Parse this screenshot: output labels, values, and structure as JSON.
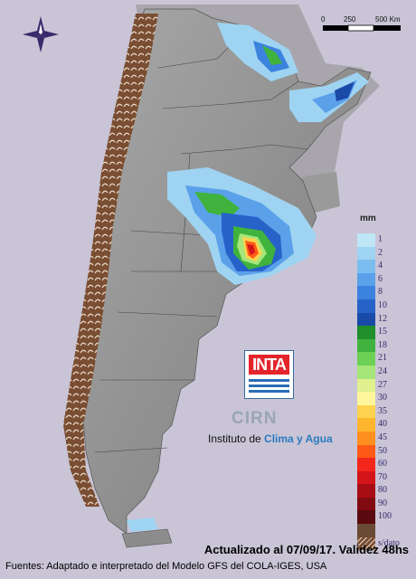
{
  "scale": {
    "label_0": "0",
    "label_mid": "250",
    "label_end": "500 Km"
  },
  "legend": {
    "unit": "mm",
    "items": [
      {
        "label": "1",
        "color": "#bfe6f5"
      },
      {
        "label": "2",
        "color": "#9fd3f2"
      },
      {
        "label": "4",
        "color": "#7cbdf0"
      },
      {
        "label": "6",
        "color": "#5aa1ea"
      },
      {
        "label": "8",
        "color": "#3c82df"
      },
      {
        "label": "10",
        "color": "#2762c9"
      },
      {
        "label": "12",
        "color": "#1a4aa8"
      },
      {
        "label": "15",
        "color": "#1e8f2a"
      },
      {
        "label": "18",
        "color": "#3fb33d"
      },
      {
        "label": "21",
        "color": "#6bd053"
      },
      {
        "label": "24",
        "color": "#a6e57a"
      },
      {
        "label": "27",
        "color": "#e0f08f"
      },
      {
        "label": "30",
        "color": "#fff69b"
      },
      {
        "label": "35",
        "color": "#ffd34d"
      },
      {
        "label": "40",
        "color": "#ffb52c"
      },
      {
        "label": "45",
        "color": "#ff8f1f"
      },
      {
        "label": "50",
        "color": "#ff5a16"
      },
      {
        "label": "60",
        "color": "#f2261a"
      },
      {
        "label": "70",
        "color": "#d4141a"
      },
      {
        "label": "80",
        "color": "#a80d15"
      },
      {
        "label": "90",
        "color": "#820a12"
      },
      {
        "label": "100",
        "color": "#5a0a0f"
      },
      {
        "label": "",
        "color": "#6a4a35"
      },
      {
        "label": "s/dato",
        "color": "#8a5a3c"
      }
    ]
  },
  "logo": {
    "inta": "INTA",
    "cirn": "CIRN",
    "instituto_prefix": "Instituto de ",
    "instituto_accent": "Clima y Agua"
  },
  "footer": {
    "line1": "Actualizado al 07/09/17. Validez 48hs",
    "line2": "Fuentes: Adaptado e interpretado del Modelo GFS del COLA-IGES, USA"
  },
  "colors": {
    "background": "#c9c4d6",
    "land": "#8f8f8f",
    "andes_hatch": "#7a4e32"
  }
}
